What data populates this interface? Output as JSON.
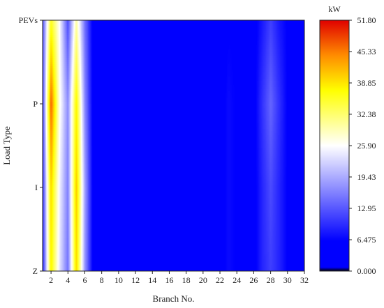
{
  "chart_data": {
    "type": "heatmap",
    "xlabel": "Branch No.",
    "ylabel": "Load Type",
    "x_ticks": [
      2,
      4,
      6,
      8,
      10,
      12,
      14,
      16,
      18,
      20,
      22,
      24,
      26,
      28,
      30,
      32
    ],
    "xlim": [
      1,
      32
    ],
    "y_categories": [
      "Z",
      "I",
      "P",
      "PEVs"
    ],
    "colorbar": {
      "unit": "kW",
      "min": 0.0,
      "max": 51.8,
      "tick_labels": [
        "51.80",
        "45.33",
        "38.85",
        "32.38",
        "25.90",
        "19.43",
        "12.95",
        "6.475",
        "0.000"
      ],
      "colors": [
        "#000000",
        "#0000ff",
        "#ffffff",
        "#ffff00",
        "#ff8c00",
        "#e00000"
      ]
    },
    "branches": [
      1,
      2,
      3,
      4,
      5,
      6,
      7,
      8,
      9,
      10,
      11,
      12,
      13,
      14,
      15,
      16,
      17,
      18,
      19,
      20,
      21,
      22,
      23,
      24,
      25,
      26,
      27,
      28,
      29,
      30,
      31,
      32
    ],
    "values": {
      "Z": [
        8,
        38,
        24,
        15,
        40,
        18,
        5,
        5,
        5,
        5,
        5,
        6,
        5,
        5,
        5,
        5,
        4,
        4,
        4,
        4,
        4,
        5,
        7,
        6,
        5,
        5,
        9,
        11,
        9,
        6,
        5,
        4
      ],
      "I": [
        9,
        40,
        25,
        16,
        41,
        19,
        5,
        5,
        5,
        5,
        5,
        6,
        5,
        5,
        5,
        5,
        4,
        4,
        4,
        4,
        4,
        5,
        7,
        6,
        5,
        5,
        9,
        12,
        9,
        6,
        5,
        4
      ],
      "P": [
        10,
        47,
        27,
        17,
        38,
        17,
        5,
        6,
        6,
        5,
        5,
        6,
        5,
        5,
        5,
        5,
        4,
        4,
        4,
        4,
        4,
        5,
        7,
        6,
        5,
        5,
        10,
        14,
        10,
        6,
        5,
        4
      ],
      "PEVs": [
        12,
        36,
        26,
        12,
        30,
        15,
        5,
        5,
        5,
        5,
        5,
        5,
        5,
        5,
        5,
        5,
        4,
        4,
        4,
        4,
        4,
        5,
        6,
        6,
        5,
        5,
        8,
        11,
        8,
        6,
        5,
        4
      ]
    }
  }
}
